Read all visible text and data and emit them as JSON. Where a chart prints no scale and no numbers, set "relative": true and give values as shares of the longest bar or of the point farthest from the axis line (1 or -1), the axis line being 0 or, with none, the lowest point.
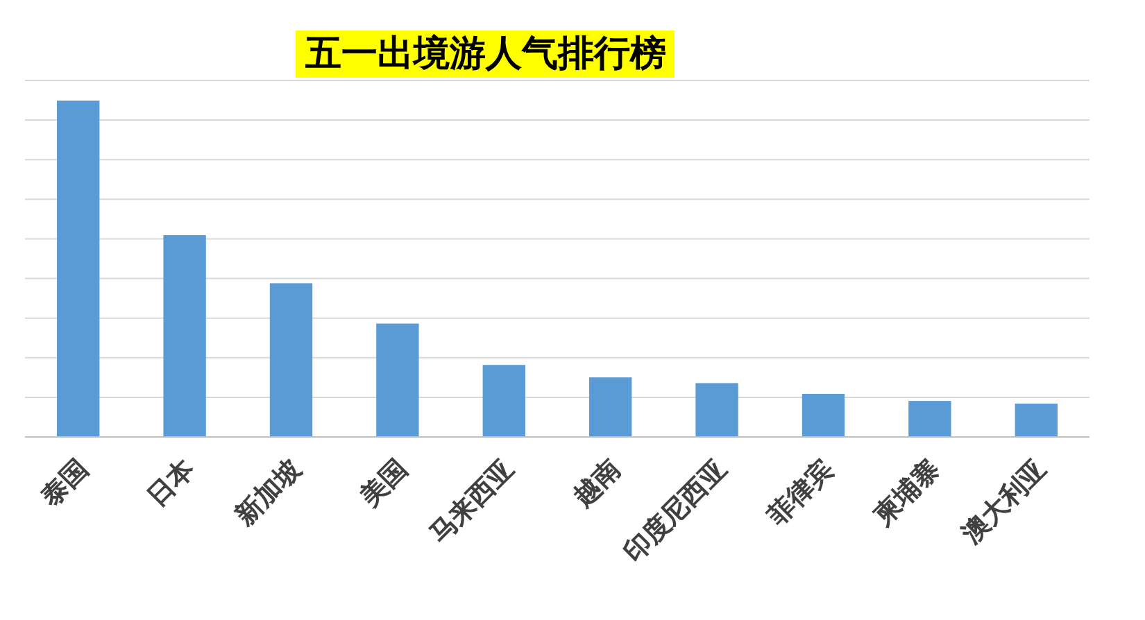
{
  "chart_data": {
    "type": "bar",
    "title": "五一出境游人气排行榜",
    "categories": [
      "泰国",
      "日本",
      "新加坡",
      "美国",
      "马来西亚",
      "越南",
      "印度尼西亚",
      "菲律宾",
      "柬埔寨",
      "澳大利亚"
    ],
    "values": [
      1,
      0.6,
      0.457,
      0.337,
      0.214,
      0.177,
      0.16,
      0.128,
      0.107,
      0.099
    ],
    "color": "#5b9bd5",
    "relative": true,
    "grid": "y"
  }
}
